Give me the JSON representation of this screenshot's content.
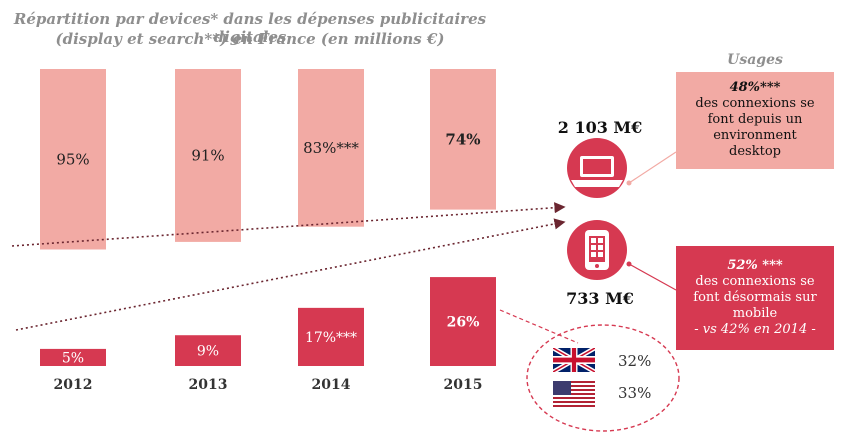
{
  "title_line1": "Répartition par devices* dans les dépenses publicitaires  digitales",
  "title_line2": "(display et search**) en France (en millions €)",
  "usages_label": "Usages",
  "desktop": {
    "amount": "2 103 M€",
    "pct": "48%***",
    "lines": [
      "des connexions se",
      "font  depuis un",
      "environment",
      "desktop"
    ]
  },
  "mobile": {
    "amount": "733 M€",
    "pct": "52% ***",
    "lines": [
      "des connexions se",
      "font désormais sur",
      "mobile"
    ],
    "note": "- vs 42% en 2014 -"
  },
  "flags": [
    {
      "icon": "uk-flag-icon",
      "value": "32%"
    },
    {
      "icon": "us-flag-icon",
      "value": "33%"
    }
  ],
  "colors": {
    "desktop": "#f2aaa4",
    "mobile": "#d63951",
    "dotted": "#6b2630",
    "title": "#8e8e8e"
  },
  "chart_data": {
    "type": "bar",
    "stacked": true,
    "categories": [
      "2012",
      "2013",
      "2014",
      "2015"
    ],
    "series": [
      {
        "values": [
          95,
          91,
          83,
          74
        ],
        "labels": [
          "95%",
          "91%",
          "83%***",
          "74%"
        ]
      },
      {
        "values": [
          5,
          9,
          17,
          26
        ],
        "labels": [
          "5%",
          "9%",
          "17%***",
          "26%"
        ]
      }
    ],
    "ylim": [
      0,
      100
    ]
  }
}
